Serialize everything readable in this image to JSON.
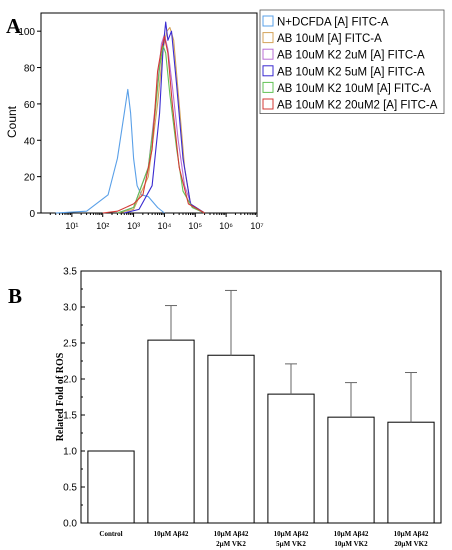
{
  "panel_a": {
    "label": "A"
  },
  "panel_b": {
    "label": "B"
  },
  "chart_data": [
    {
      "type": "line",
      "panel": "A",
      "xlabel": "",
      "ylabel": "Count",
      "x_scale": "log",
      "xlim": [
        1,
        10000000
      ],
      "ylim": [
        0,
        110
      ],
      "x_ticks": [
        10,
        100,
        1000,
        10000,
        100000,
        1000000,
        10000000
      ],
      "x_tick_labels": [
        "10¹",
        "10²",
        "10³",
        "10⁴",
        "10⁵",
        "10⁶",
        "10⁷"
      ],
      "y_ticks": [
        0,
        20,
        40,
        60,
        80,
        100
      ],
      "y_tick_labels": [
        "0",
        "20",
        "40",
        "60",
        "80",
        "100"
      ],
      "legend_position": "top-right",
      "series": [
        {
          "name": "N+DCFDA [A] FITC-A",
          "color": "#5aa0e8",
          "x": [
            3,
            30,
            150,
            300,
            500,
            650,
            800,
            1000,
            1300,
            1800,
            3000,
            6000,
            10000
          ],
          "y": [
            0,
            1,
            10,
            30,
            55,
            68,
            55,
            30,
            15,
            10,
            9,
            3,
            0
          ]
        },
        {
          "name": "AB 10uM [A] FITC-A",
          "color": "#d4a35a",
          "x": [
            300,
            1000,
            3000,
            6000,
            9000,
            12000,
            15000,
            20000,
            30000,
            45000,
            70000,
            200000
          ],
          "y": [
            0,
            2,
            20,
            60,
            90,
            100,
            102,
            95,
            60,
            25,
            5,
            0
          ]
        },
        {
          "name": "AB 10uM K2 2uM [A] FITC-A",
          "color": "#b86fd6",
          "x": [
            300,
            1000,
            3000,
            6000,
            8000,
            10000,
            13000,
            18000,
            28000,
            45000,
            80000,
            200000
          ],
          "y": [
            0,
            3,
            25,
            70,
            93,
            98,
            90,
            70,
            40,
            15,
            3,
            0
          ]
        },
        {
          "name": "AB 10uM K2 5uM [A] FITC-A",
          "color": "#3a2bd1",
          "x": [
            500,
            1500,
            4000,
            7000,
            9000,
            11000,
            13000,
            17000,
            25000,
            40000,
            70000,
            200000
          ],
          "y": [
            0,
            2,
            15,
            55,
            90,
            105,
            95,
            100,
            70,
            30,
            5,
            0
          ]
        },
        {
          "name": "AB 10uM K2 10uM [A] FITC-A",
          "color": "#62c255",
          "x": [
            300,
            1000,
            3000,
            5000,
            7000,
            9000,
            11000,
            15000,
            25000,
            40000,
            80000,
            200000
          ],
          "y": [
            0,
            3,
            25,
            55,
            80,
            92,
            88,
            65,
            35,
            12,
            3,
            0
          ]
        },
        {
          "name": "AB 10uM K2 20uM2 [A] FITC-A",
          "color": "#d33a35",
          "x": [
            100,
            300,
            1000,
            2000,
            4000,
            6000,
            8000,
            10000,
            13000,
            18000,
            30000,
            60000,
            200000
          ],
          "y": [
            0,
            1,
            5,
            10,
            35,
            78,
            90,
            97,
            88,
            60,
            25,
            5,
            0
          ]
        }
      ]
    },
    {
      "type": "bar",
      "panel": "B",
      "xlabel": "",
      "ylabel": "Related Fold of ROS",
      "ylim": [
        0,
        3.5
      ],
      "y_ticks": [
        0.0,
        0.5,
        1.0,
        1.5,
        2.0,
        2.5,
        3.0,
        3.5
      ],
      "y_tick_labels": [
        "0.0",
        "0.5",
        "1.0",
        "1.5",
        "2.0",
        "2.5",
        "3.0",
        "3.5"
      ],
      "categories": [
        [
          "Control"
        ],
        [
          "10μM Aβ42"
        ],
        [
          "10μM Aβ42",
          "2μM VK2"
        ],
        [
          "10μM Aβ42",
          "5μM VK2"
        ],
        [
          "10μM Aβ42",
          "10μM VK2"
        ],
        [
          "10μM Aβ42",
          "20μM VK2"
        ]
      ],
      "values": [
        1.0,
        2.54,
        2.33,
        1.79,
        1.47,
        1.4
      ],
      "error_upper": [
        0.0,
        0.48,
        0.9,
        0.42,
        0.48,
        0.69
      ]
    }
  ]
}
